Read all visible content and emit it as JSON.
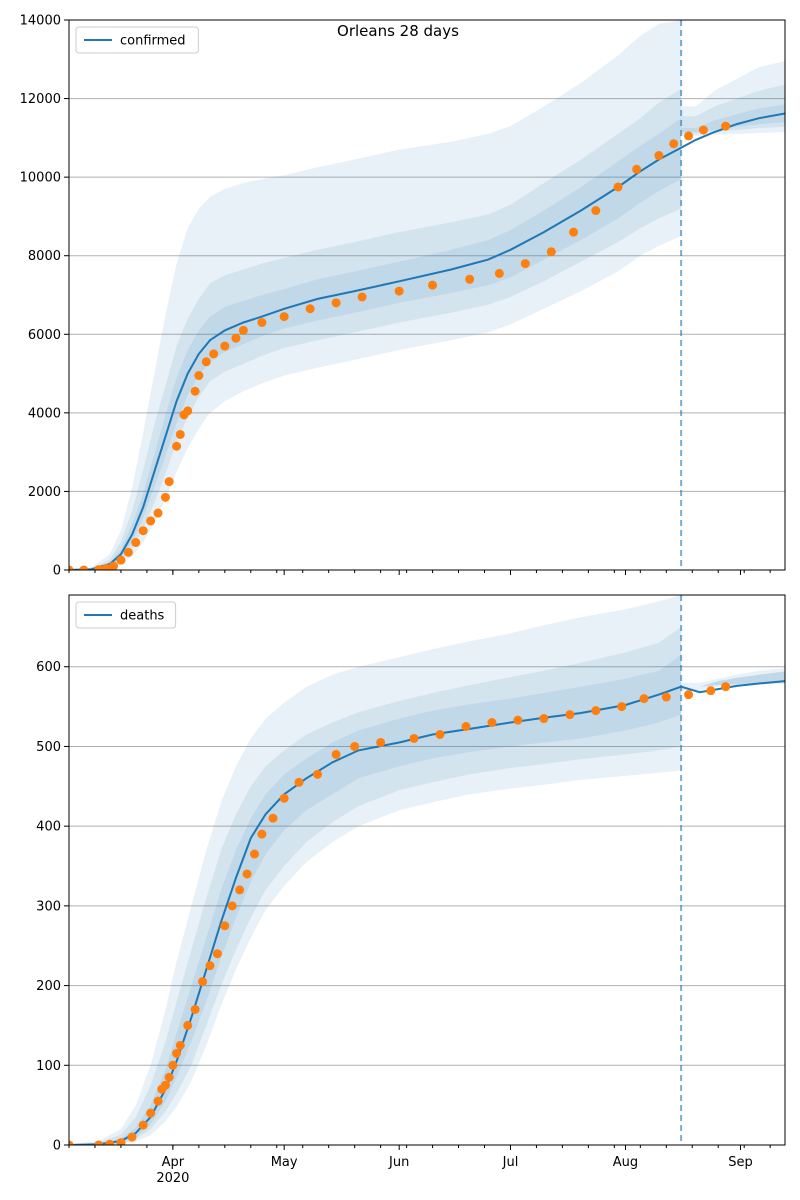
{
  "figure": {
    "title": "Orleans 28 days",
    "colors": {
      "model": "#1f77b4",
      "observed": "#ff7f0e",
      "band": "#1f77b4",
      "grid": "#b0b0b0",
      "split": "#1f77b4"
    },
    "x_tick_labels": [
      {
        "date": "2020-04-01",
        "label": "Apr",
        "sublabel": "2020"
      },
      {
        "date": "2020-05-01",
        "label": "May",
        "sublabel": ""
      },
      {
        "date": "2020-06-01",
        "label": "Jun",
        "sublabel": ""
      },
      {
        "date": "2020-07-01",
        "label": "Jul",
        "sublabel": ""
      },
      {
        "date": "2020-08-01",
        "label": "Aug",
        "sublabel": ""
      },
      {
        "date": "2020-09-01",
        "label": "Sep",
        "sublabel": ""
      }
    ],
    "xlim": [
      "2020-03-04",
      "2020-09-13"
    ],
    "forecast_split_date": "2020-08-16"
  },
  "chart_data": [
    {
      "type": "line",
      "title": "Orleans 28 days",
      "legend": {
        "label": "confirmed",
        "position": "top-left"
      },
      "grid": "y",
      "ylim": [
        0,
        14000
      ],
      "yticks": [
        0,
        2000,
        4000,
        6000,
        8000,
        10000,
        12000,
        14000
      ],
      "model": {
        "x": [
          "2020-03-04",
          "2020-03-10",
          "2020-03-15",
          "2020-03-18",
          "2020-03-21",
          "2020-03-24",
          "2020-03-27",
          "2020-03-30",
          "2020-04-02",
          "2020-04-05",
          "2020-04-08",
          "2020-04-11",
          "2020-04-15",
          "2020-04-20",
          "2020-04-25",
          "2020-05-01",
          "2020-05-10",
          "2020-05-20",
          "2020-06-01",
          "2020-06-15",
          "2020-06-25",
          "2020-07-01",
          "2020-07-10",
          "2020-07-20",
          "2020-07-30",
          "2020-08-05",
          "2020-08-10",
          "2020-08-16",
          "2020-08-20",
          "2020-08-25",
          "2020-08-31",
          "2020-09-06",
          "2020-09-13"
        ],
        "y": [
          0,
          20,
          150,
          400,
          900,
          1600,
          2500,
          3400,
          4300,
          5000,
          5500,
          5850,
          6100,
          6300,
          6450,
          6650,
          6900,
          7100,
          7350,
          7650,
          7900,
          8150,
          8600,
          9150,
          9750,
          10150,
          10450,
          10750,
          10950,
          11150,
          11350,
          11500,
          11620
        ],
        "bands": [
          {
            "lower": [
              0,
              0,
              50,
              150,
              350,
              700,
              1200,
              1800,
              2500,
              3100,
              3600,
              4000,
              4300,
              4550,
              4750,
              4950,
              5150,
              5350,
              5600,
              5850,
              6050,
              6250,
              6650,
              7100,
              7600,
              8000,
              8250,
              8500,
              11050,
              11080,
              11100,
              11120,
              11150
            ],
            "upper": [
              10,
              60,
              400,
              1000,
              2100,
              3500,
              5000,
              6500,
              7800,
              8700,
              9200,
              9500,
              9700,
              9850,
              9950,
              10050,
              10250,
              10450,
              10700,
              10900,
              11100,
              11300,
              11800,
              12400,
              13100,
              13600,
              13900,
              14000,
              11800,
              12200,
              12500,
              12800,
              12950
            ]
          },
          {
            "lower": [
              0,
              5,
              80,
              230,
              550,
              1050,
              1700,
              2450,
              3250,
              3900,
              4400,
              4800,
              5050,
              5250,
              5450,
              5650,
              5850,
              6050,
              6300,
              6550,
              6750,
              6950,
              7350,
              7850,
              8350,
              8700,
              8950,
              9200,
              11100,
              11150,
              11200,
              11250,
              11280
            ],
            "upper": [
              5,
              40,
              260,
              720,
              1500,
              2550,
              3700,
              4700,
              5700,
              6400,
              6900,
              7300,
              7500,
              7650,
              7800,
              7950,
              8150,
              8350,
              8600,
              8850,
              9050,
              9300,
              9850,
              10450,
              11100,
              11500,
              11900,
              12250,
              11550,
              11800,
              12000,
              12200,
              12350
            ]
          },
          {
            "lower": [
              0,
              10,
              110,
              310,
              720,
              1330,
              2100,
              2900,
              3750,
              4450,
              4950,
              5300,
              5550,
              5750,
              5950,
              6150,
              6350,
              6550,
              6800,
              7050,
              7250,
              7450,
              7900,
              8400,
              8950,
              9350,
              9650,
              9950,
              11150,
              11200,
              11280,
              11350,
              11400
            ],
            "upper": [
              2,
              30,
              200,
              530,
              1150,
              1950,
              2950,
              3950,
              4900,
              5600,
              6100,
              6450,
              6700,
              6850,
              7000,
              7150,
              7400,
              7600,
              7850,
              8150,
              8400,
              8650,
              9150,
              9750,
              10400,
              10800,
              11100,
              11500,
              11250,
              11450,
              11600,
              11750,
              11850
            ]
          }
        ]
      },
      "observed": {
        "x": [
          "2020-03-04",
          "2020-03-08",
          "2020-03-12",
          "2020-03-14",
          "2020-03-16",
          "2020-03-18",
          "2020-03-20",
          "2020-03-22",
          "2020-03-24",
          "2020-03-26",
          "2020-03-28",
          "2020-03-30",
          "2020-03-31",
          "2020-04-02",
          "2020-04-03",
          "2020-04-04",
          "2020-04-05",
          "2020-04-07",
          "2020-04-08",
          "2020-04-10",
          "2020-04-12",
          "2020-04-15",
          "2020-04-18",
          "2020-04-20",
          "2020-04-25",
          "2020-05-01",
          "2020-05-08",
          "2020-05-15",
          "2020-05-22",
          "2020-06-01",
          "2020-06-10",
          "2020-06-20",
          "2020-06-28",
          "2020-07-05",
          "2020-07-12",
          "2020-07-18",
          "2020-07-24",
          "2020-07-30",
          "2020-08-04",
          "2020-08-10",
          "2020-08-14",
          "2020-08-18",
          "2020-08-22",
          "2020-08-28"
        ],
        "y": [
          0,
          0,
          10,
          40,
          100,
          250,
          450,
          700,
          1000,
          1250,
          1450,
          1850,
          2250,
          3150,
          3450,
          3950,
          4050,
          4550,
          4950,
          5300,
          5500,
          5700,
          5900,
          6100,
          6300,
          6450,
          6650,
          6800,
          6950,
          7100,
          7250,
          7400,
          7550,
          7800,
          8100,
          8600,
          9150,
          9750,
          10200,
          10550,
          10850,
          11050,
          11200,
          11300
        ]
      }
    },
    {
      "type": "line",
      "title": "",
      "legend": {
        "label": "deaths",
        "position": "top-left"
      },
      "grid": "y",
      "ylim": [
        0,
        690
      ],
      "yticks": [
        0,
        100,
        200,
        300,
        400,
        500,
        600
      ],
      "model": {
        "x": [
          "2020-03-04",
          "2020-03-12",
          "2020-03-18",
          "2020-03-22",
          "2020-03-26",
          "2020-03-30",
          "2020-04-02",
          "2020-04-06",
          "2020-04-10",
          "2020-04-14",
          "2020-04-18",
          "2020-04-22",
          "2020-04-26",
          "2020-05-01",
          "2020-05-07",
          "2020-05-14",
          "2020-05-21",
          "2020-06-01",
          "2020-06-10",
          "2020-06-20",
          "2020-07-01",
          "2020-07-10",
          "2020-07-20",
          "2020-08-01",
          "2020-08-10",
          "2020-08-16",
          "2020-08-21",
          "2020-08-26",
          "2020-08-31",
          "2020-09-06",
          "2020-09-13"
        ],
        "y": [
          0,
          1,
          5,
          15,
          35,
          70,
          105,
          160,
          220,
          280,
          335,
          385,
          415,
          440,
          460,
          480,
          495,
          505,
          515,
          522,
          530,
          536,
          542,
          552,
          565,
          575,
          568,
          572,
          576,
          579,
          582
        ],
        "bands": [
          {
            "lower": [
              0,
              0,
              1,
              4,
              12,
              30,
              48,
              80,
              125,
              175,
              220,
              260,
              295,
              325,
              355,
              380,
              400,
              420,
              430,
              440,
              447,
              452,
              458,
              463,
              467,
              470,
              575,
              577,
              578,
              579,
              580
            ],
            "upper": [
              1,
              5,
              20,
              50,
              100,
              170,
              230,
              300,
              370,
              430,
              475,
              510,
              535,
              555,
              575,
              590,
              600,
              612,
              622,
              632,
              642,
              652,
              662,
              672,
              682,
              690,
              580,
              585,
              590,
              595,
              598
            ]
          },
          {
            "lower": [
              0,
              0,
              2,
              7,
              20,
              42,
              65,
              100,
              150,
              200,
              245,
              285,
              320,
              350,
              380,
              405,
              425,
              445,
              455,
              465,
              473,
              478,
              484,
              490,
              495,
              500,
              575,
              577,
              578,
              579,
              580
            ],
            "upper": [
              0,
              3,
              13,
              35,
              75,
              130,
              180,
              245,
              310,
              370,
              415,
              450,
              475,
              495,
              515,
              530,
              543,
              557,
              567,
              577,
              587,
              595,
              605,
              618,
              630,
              650,
              575,
              582,
              586,
              590,
              594
            ]
          },
          {
            "lower": [
              0,
              1,
              3,
              10,
              26,
              55,
              85,
              130,
              180,
              235,
              285,
              330,
              365,
              395,
              420,
              440,
              460,
              475,
              485,
              493,
              500,
              505,
              510,
              520,
              530,
              540,
              570,
              575,
              577,
              578,
              579
            ],
            "upper": [
              0,
              2,
              8,
              22,
              50,
              95,
              140,
              200,
              260,
              320,
              370,
              410,
              440,
              465,
              485,
              505,
              520,
              535,
              545,
              553,
              560,
              567,
              575,
              585,
              595,
              615,
              575,
              582,
              586,
              590,
              594
            ]
          }
        ]
      },
      "observed": {
        "x": [
          "2020-03-04",
          "2020-03-12",
          "2020-03-15",
          "2020-03-18",
          "2020-03-21",
          "2020-03-24",
          "2020-03-26",
          "2020-03-28",
          "2020-03-29",
          "2020-03-30",
          "2020-03-31",
          "2020-04-01",
          "2020-04-02",
          "2020-04-03",
          "2020-04-05",
          "2020-04-07",
          "2020-04-09",
          "2020-04-11",
          "2020-04-13",
          "2020-04-15",
          "2020-04-17",
          "2020-04-19",
          "2020-04-21",
          "2020-04-23",
          "2020-04-25",
          "2020-04-28",
          "2020-05-01",
          "2020-05-05",
          "2020-05-10",
          "2020-05-15",
          "2020-05-20",
          "2020-05-27",
          "2020-06-05",
          "2020-06-12",
          "2020-06-19",
          "2020-06-26",
          "2020-07-03",
          "2020-07-10",
          "2020-07-17",
          "2020-07-24",
          "2020-07-31",
          "2020-08-06",
          "2020-08-12",
          "2020-08-18",
          "2020-08-24",
          "2020-08-28"
        ],
        "y": [
          0,
          0,
          1,
          3,
          10,
          25,
          40,
          55,
          70,
          75,
          85,
          100,
          115,
          125,
          150,
          170,
          205,
          225,
          240,
          275,
          300,
          320,
          340,
          365,
          390,
          410,
          435,
          455,
          465,
          490,
          500,
          505,
          510,
          515,
          525,
          530,
          533,
          535,
          540,
          545,
          550,
          560,
          562,
          565,
          570,
          575
        ]
      }
    }
  ]
}
